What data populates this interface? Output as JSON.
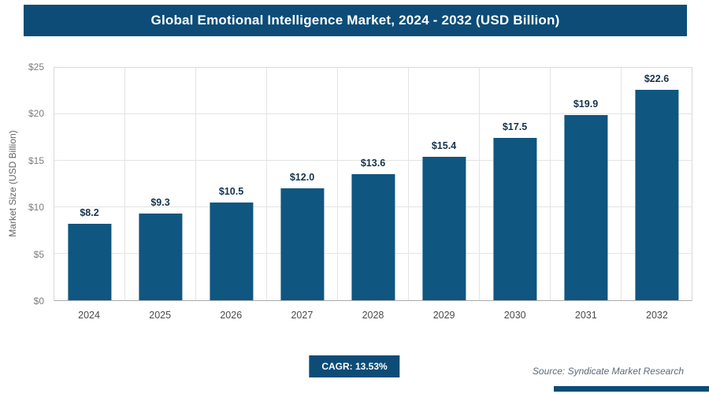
{
  "header": {
    "title": "Global Emotional Intelligence Market, 2024 - 2032 (USD Billion)"
  },
  "footer": {
    "cagr_label": "CAGR: 13.53%",
    "source": "Source: Syndicate Market Research"
  },
  "colors": {
    "header-bg": "#0c4c77",
    "bar-fill": "#0f5680",
    "value-label": "#16334d",
    "grid-line": "#e4e4e4",
    "tick-text": "#7d7d7d",
    "source-text": "#5a6b7c"
  },
  "chart_data": {
    "type": "bar",
    "title": "Global Emotional Intelligence Market, 2024 - 2032 (USD Billion)",
    "categories": [
      "2024",
      "2025",
      "2026",
      "2027",
      "2028",
      "2029",
      "2030",
      "2031",
      "2032"
    ],
    "values": [
      8.2,
      9.3,
      10.5,
      12.0,
      13.6,
      15.4,
      17.5,
      19.9,
      22.6
    ],
    "value_labels": [
      "$8.2",
      "$9.3",
      "$10.5",
      "$12.0",
      "$13.6",
      "$15.4",
      "$17.5",
      "$19.9",
      "$22.6"
    ],
    "xlabel": "",
    "ylabel": "Market Size (USD Billion)",
    "ylim": [
      0,
      25
    ],
    "yticks": [
      "$0",
      "$5",
      "$10",
      "$15",
      "$20",
      "$25"
    ],
    "grid": true,
    "legend": false
  }
}
